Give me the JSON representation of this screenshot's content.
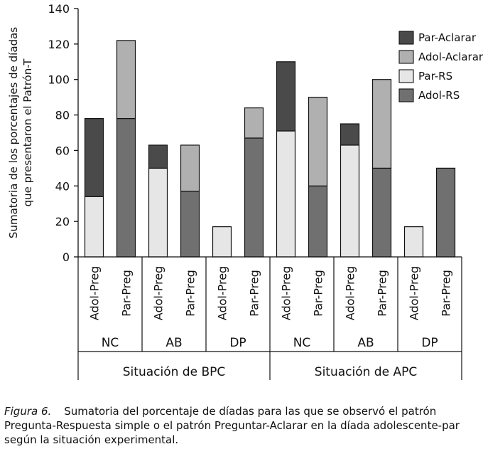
{
  "chart_data": {
    "type": "bar",
    "stacked": true,
    "ylabel_lines": [
      "Sumatoria de los porcentajes de díadas",
      "que presentaron el Patrón-T"
    ],
    "ylim": [
      0,
      140
    ],
    "yticks": [
      0,
      20,
      40,
      60,
      80,
      100,
      120,
      140
    ],
    "legend": [
      "Par-Aclarar",
      "Adol-Aclarar",
      "Par-RS",
      "Adol-RS"
    ],
    "legend_position": "top-right",
    "series": [
      {
        "name": "Adol-RS",
        "color": "#707070"
      },
      {
        "name": "Par-RS",
        "color": "#e6e6e6"
      },
      {
        "name": "Adol-Aclarar",
        "color": "#b0b0b0"
      },
      {
        "name": "Par-Aclarar",
        "color": "#4a4a4a"
      }
    ],
    "bars": [
      {
        "label": "Adol-Preg",
        "segments": [
          0,
          34,
          0,
          44
        ]
      },
      {
        "label": "Par-Preg",
        "segments": [
          78,
          0,
          44,
          0
        ]
      },
      {
        "label": "Adol-Preg",
        "segments": [
          0,
          50,
          0,
          13
        ]
      },
      {
        "label": "Par-Preg",
        "segments": [
          37,
          0,
          26,
          0
        ]
      },
      {
        "label": "Adol-Preg",
        "segments": [
          0,
          17,
          0,
          0
        ]
      },
      {
        "label": "Par-Preg",
        "segments": [
          67,
          0,
          17,
          0
        ]
      },
      {
        "label": "Adol-Preg",
        "segments": [
          0,
          71,
          0,
          39
        ]
      },
      {
        "label": "Par-Preg",
        "segments": [
          40,
          0,
          50,
          0
        ]
      },
      {
        "label": "Adol-Preg",
        "segments": [
          0,
          63,
          0,
          12
        ]
      },
      {
        "label": "Par-Preg",
        "segments": [
          50,
          0,
          50,
          0
        ]
      },
      {
        "label": "Adol-Preg",
        "segments": [
          0,
          17,
          0,
          0
        ]
      },
      {
        "label": "Par-Preg",
        "segments": [
          50,
          0,
          0,
          0
        ]
      }
    ],
    "groups": [
      "NC",
      "AB",
      "DP",
      "NC",
      "AB",
      "DP"
    ],
    "situations": [
      "Situación de BPC",
      "Situación de APC"
    ]
  },
  "caption": {
    "figure_label": "Figura 6.",
    "text": "Sumatoria del porcentaje de díadas para las que se observó el patrón Pregunta-Respuesta simple o el patrón Preguntar-Aclarar en la díada adolescente-par según la situación experimental."
  }
}
